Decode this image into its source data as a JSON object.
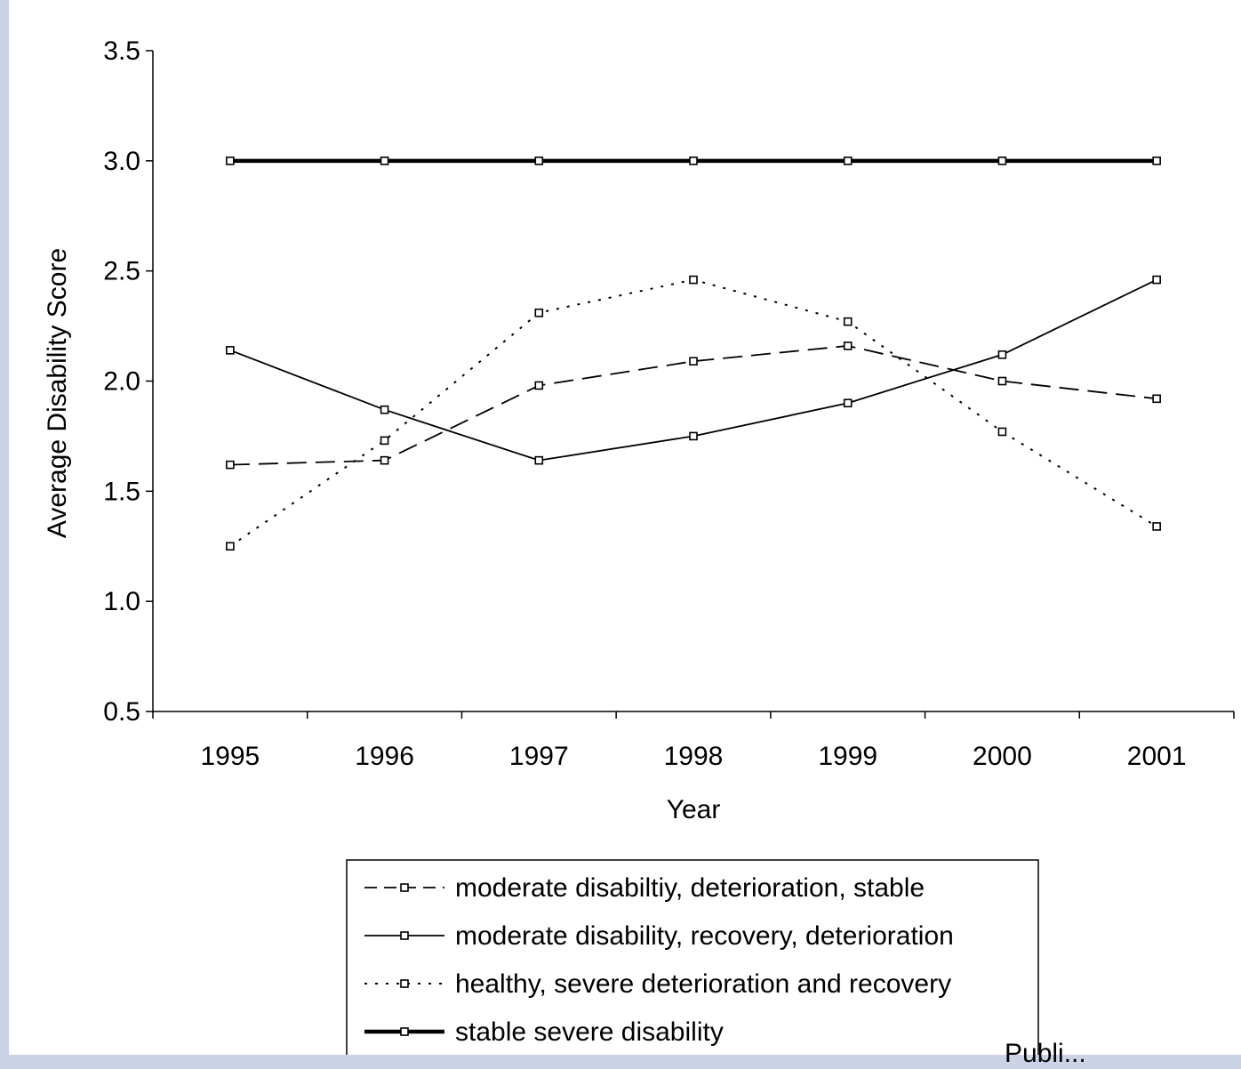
{
  "chart_data": {
    "type": "line",
    "xlabel": "Year",
    "ylabel": "Average Disability Score",
    "x": [
      "1995",
      "1996",
      "1997",
      "1998",
      "1999",
      "2000",
      "2001"
    ],
    "ylim": [
      0.5,
      3.5
    ],
    "yticks": [
      "3.5",
      "3.0",
      "2.5",
      "2.0",
      "1.5",
      "1.0",
      "0.5"
    ],
    "ytick_values": [
      3.5,
      3.0,
      2.5,
      2.0,
      1.5,
      1.0,
      0.5
    ],
    "grid": false,
    "legend_position": "bottom-center",
    "series": [
      {
        "name": "moderate disabiltiy, deterioration, stable",
        "style": "dashed",
        "values": [
          1.62,
          1.64,
          1.98,
          2.09,
          2.16,
          2.0,
          1.92
        ]
      },
      {
        "name": "moderate disability, recovery, deterioration",
        "style": "solid",
        "values": [
          2.14,
          1.87,
          1.64,
          1.75,
          1.9,
          2.12,
          2.46
        ]
      },
      {
        "name": "healthy, severe deterioration and recovery",
        "style": "dotted",
        "values": [
          1.25,
          1.73,
          2.31,
          2.46,
          2.27,
          1.77,
          1.34
        ]
      },
      {
        "name": "stable severe disability",
        "style": "thick",
        "values": [
          3.0,
          3.0,
          3.0,
          3.0,
          3.0,
          3.0,
          3.0
        ]
      }
    ],
    "colors": {
      "line": "#000000",
      "background": "#ffffff",
      "page_border": "#ccd3e6"
    }
  },
  "footer": {
    "text": "Publi..."
  }
}
